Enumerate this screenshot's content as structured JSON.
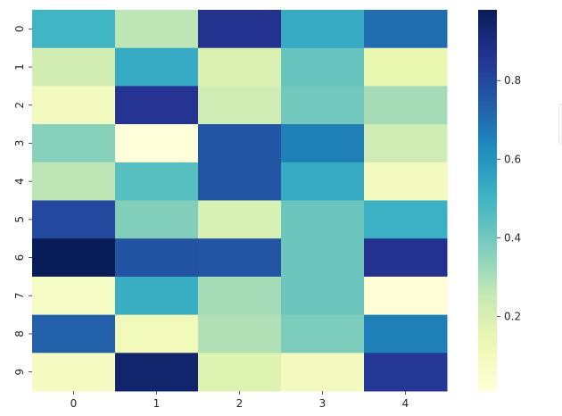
{
  "chart_data": {
    "type": "heatmap",
    "colormap": "YlGnBu",
    "x_categories": [
      "0",
      "1",
      "2",
      "3",
      "4"
    ],
    "y_categories": [
      "0",
      "1",
      "2",
      "3",
      "4",
      "5",
      "6",
      "7",
      "8",
      "9"
    ],
    "values": [
      [
        0.5,
        0.27,
        0.87,
        0.53,
        0.7
      ],
      [
        0.22,
        0.53,
        0.19,
        0.42,
        0.14
      ],
      [
        0.09,
        0.86,
        0.23,
        0.4,
        0.31
      ],
      [
        0.36,
        0.01,
        0.76,
        0.66,
        0.23
      ],
      [
        0.27,
        0.45,
        0.76,
        0.53,
        0.09
      ],
      [
        0.8,
        0.37,
        0.2,
        0.41,
        0.51
      ],
      [
        0.98,
        0.77,
        0.76,
        0.41,
        0.87
      ],
      [
        0.07,
        0.52,
        0.31,
        0.41,
        0.02
      ],
      [
        0.73,
        0.1,
        0.29,
        0.38,
        0.66
      ],
      [
        0.08,
        0.94,
        0.18,
        0.09,
        0.85
      ]
    ],
    "vmin": 0.01,
    "vmax": 0.98,
    "colorbar_ticks": [
      "0.2",
      "0.4",
      "0.6",
      "0.8"
    ],
    "colorbar_tick_values": [
      0.2,
      0.4,
      0.6,
      0.8
    ],
    "title": "",
    "xlabel": "",
    "ylabel": ""
  }
}
